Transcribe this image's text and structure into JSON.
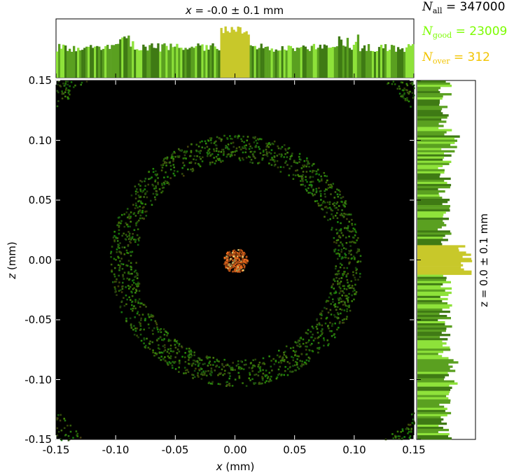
{
  "chart_data": {
    "type": "heatmap",
    "title_top": "x = -0.0 ± 0.1 mm",
    "title_top_parts": {
      "var": "x",
      "eq": " = ",
      "val": "-0.0 ± 0.1 mm"
    },
    "title_right": "z = 0.0 ± 0.1 mm",
    "xlabel": "x (mm)",
    "xlabel_parts": {
      "var": "x",
      "rest": " (mm)"
    },
    "ylabel": "z (mm)",
    "ylabel_parts": {
      "var": "z",
      "rest": " (mm)"
    },
    "xlim": [
      -0.15,
      0.15
    ],
    "ylim": [
      -0.15,
      0.15
    ],
    "xticks": [
      "-0.15",
      "-0.10",
      "-0.05",
      "0.00",
      "0.05",
      "0.10",
      "0.15"
    ],
    "yticks": [
      "0.15",
      "0.10",
      "0.05",
      "0.00",
      "-0.05",
      "-0.10",
      "-0.15"
    ],
    "xtick_values": [
      -0.15,
      -0.1,
      -0.05,
      0.0,
      0.05,
      0.1,
      0.15
    ],
    "ytick_values": [
      0.15,
      0.1,
      0.05,
      0.0,
      -0.05,
      -0.1,
      -0.15
    ],
    "stats": [
      {
        "label": "N",
        "sub": "all",
        "value": "347000",
        "color": "#000000"
      },
      {
        "label": "N",
        "sub": "good",
        "value": "23009",
        "color": "#7cfc00"
      },
      {
        "label": "N",
        "sub": "over",
        "value": "312",
        "color": "#f2c400"
      }
    ],
    "features": {
      "central_spot": {
        "center": [
          0.0,
          0.0
        ],
        "radius": 0.01,
        "color": "#e07a2a"
      },
      "rings": [
        {
          "inner_radius": 0.083,
          "outer_radius": 0.105,
          "color": "#4c8c1c"
        },
        {
          "inner_radius": 0.195,
          "outer_radius": 0.225,
          "color": "#4c8c1c"
        }
      ]
    },
    "colors": {
      "background": "#000000",
      "histogram_green": "#6abe1f",
      "histogram_yellow": "#c8c82a",
      "spot": "#e07a2a"
    }
  }
}
